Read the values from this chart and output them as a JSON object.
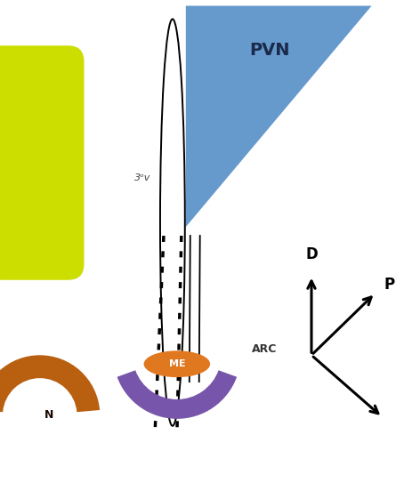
{
  "bg_color": "#ffffff",
  "pvn_color": "#6699cc",
  "pvn_label": "PVN",
  "yellow_rect_color": "#ccdd00",
  "brown_arc_color": "#b86010",
  "arc_color": "#7755aa",
  "arc_label": "ARC",
  "me_color": "#e07820",
  "me_label": "ME",
  "ventricle_label": "3ᵒv",
  "arrow_D_label": "D",
  "arrow_P_label": "P",
  "figw": 4.45,
  "figh": 5.43,
  "dpi": 100
}
